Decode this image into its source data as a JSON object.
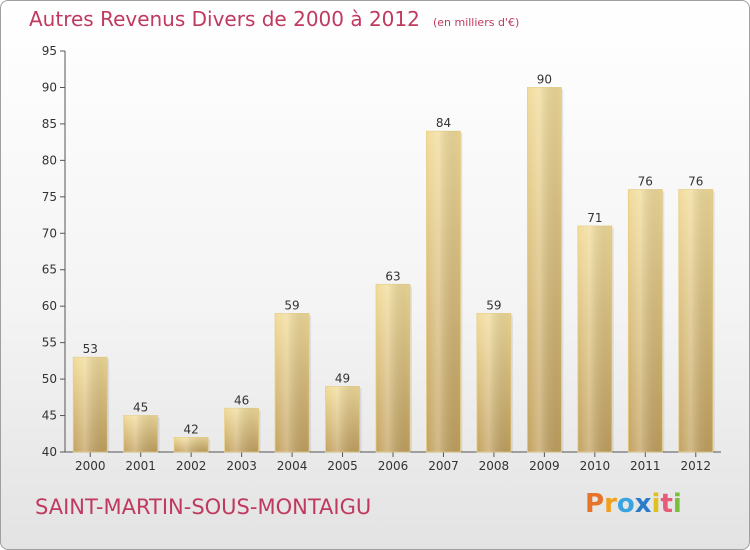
{
  "chart_data": {
    "type": "bar",
    "title": "Autres Revenus Divers de 2000 à 2012",
    "subtitle": "(en milliers d'€)",
    "categories": [
      "2000",
      "2001",
      "2002",
      "2003",
      "2004",
      "2005",
      "2006",
      "2007",
      "2008",
      "2009",
      "2010",
      "2011",
      "2012"
    ],
    "values": [
      53,
      45,
      42,
      46,
      59,
      49,
      63,
      84,
      59,
      90,
      71,
      76,
      76
    ],
    "ylim": [
      40,
      95
    ],
    "yticks": [
      40,
      45,
      50,
      55,
      60,
      65,
      70,
      75,
      80,
      85,
      90,
      95
    ],
    "grid": false,
    "bar_color": "#d8b870",
    "bar_color_light": "#f2dc9a",
    "bar_color_dark": "#c3a260"
  },
  "footer": {
    "commune": "SAINT-MARTIN-SOUS-MONTAIGU"
  },
  "brand": {
    "letters": [
      "P",
      "r",
      "o",
      "x",
      "i",
      "t",
      "i"
    ],
    "colors": [
      "#e8732a",
      "#f0a020",
      "#3aa4e0",
      "#2a7cc8",
      "#e0c020",
      "#e85a7a",
      "#7abf3a"
    ]
  }
}
